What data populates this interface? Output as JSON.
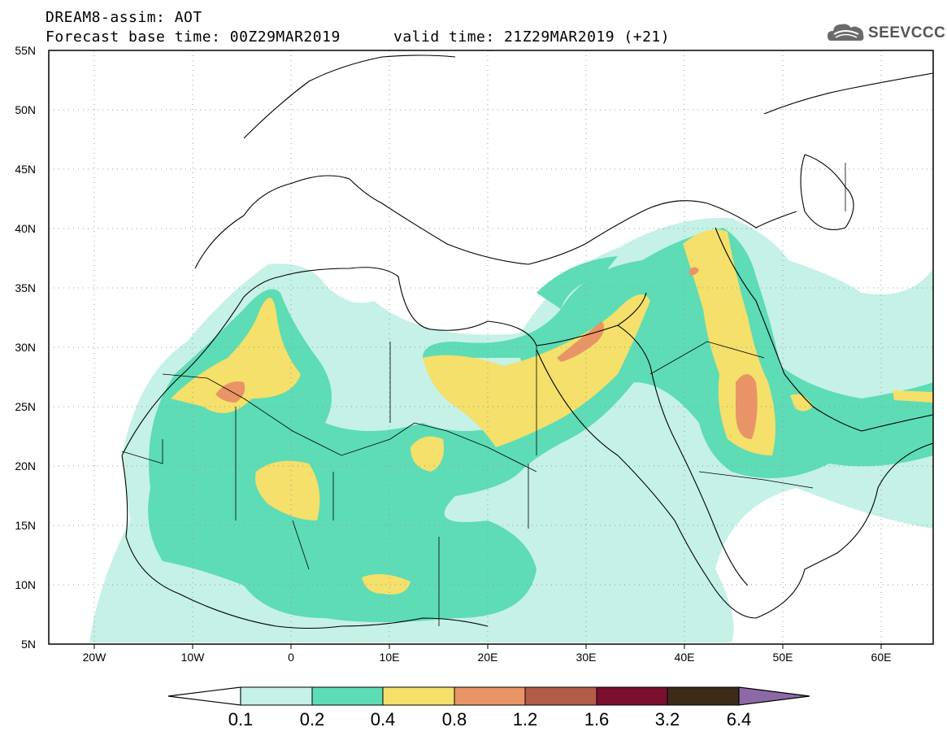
{
  "title": {
    "line1": "DREAM8-assim: AOT",
    "line2": "Forecast base time: 00Z29MAR2019",
    "valid": "valid time: 21Z29MAR2019 (+21)"
  },
  "logo": {
    "text": "SEEVCCC",
    "icon": "cloud-logo-icon"
  },
  "map": {
    "lat_labels": [
      "55N",
      "50N",
      "45N",
      "40N",
      "35N",
      "30N",
      "25N",
      "20N",
      "15N",
      "10N",
      "5N"
    ],
    "lon_labels": [
      "20W",
      "10W",
      "0",
      "10E",
      "20E",
      "30E",
      "40E",
      "50E",
      "60E"
    ],
    "extent": {
      "lon": [
        -25,
        65
      ],
      "lat": [
        5,
        55
      ]
    }
  },
  "colorbar": {
    "labels": [
      "0.1",
      "0.2",
      "0.4",
      "0.8",
      "1.2",
      "1.6",
      "3.2",
      "6.4"
    ],
    "colors": [
      "#c5f1e6",
      "#5ddcb5",
      "#f4e06a",
      "#e99466",
      "#b25b48",
      "#7a0f30",
      "#3e2a18",
      "#8d6aa6"
    ]
  }
}
